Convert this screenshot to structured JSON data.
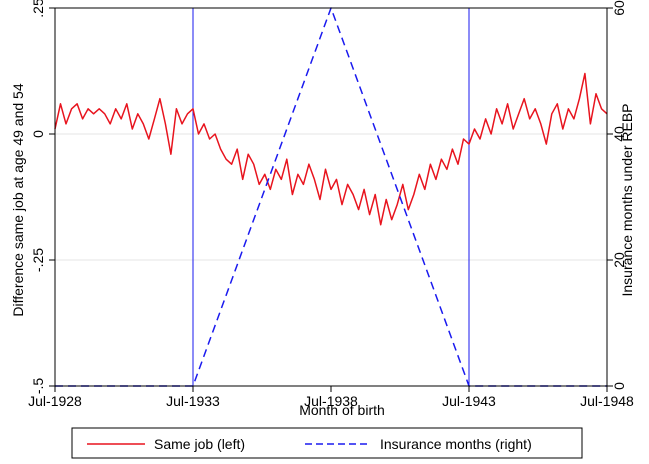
{
  "chart_data": {
    "type": "line",
    "xlabel": "Month of birth",
    "ylabel_left": "Difference same job at age 49 and 54",
    "ylabel_right": "Insurance months under REBP",
    "x_ticks": [
      {
        "label": "Jul-1928",
        "value": 1928.5
      },
      {
        "label": "Jul-1933",
        "value": 1933.5
      },
      {
        "label": "Jul-1938",
        "value": 1938.5
      },
      {
        "label": "Jul-1943",
        "value": 1943.5
      },
      {
        "label": "Jul-1948",
        "value": 1948.5
      }
    ],
    "xlim": [
      1928.5,
      1948.5
    ],
    "y_left_ticks": [
      {
        "label": "-.5",
        "value": -0.5
      },
      {
        "label": "-.25",
        "value": -0.25
      },
      {
        "label": "0",
        "value": 0
      },
      {
        "label": ".25",
        "value": 0.25
      }
    ],
    "y_left_lim": [
      -0.5,
      0.25
    ],
    "y_right_ticks": [
      {
        "label": "0",
        "value": 0
      },
      {
        "label": "20",
        "value": 20
      },
      {
        "label": "40",
        "value": 40
      },
      {
        "label": "60",
        "value": 60
      }
    ],
    "y_right_lim": [
      0,
      60
    ],
    "grid": true,
    "vlines": [
      1933.5,
      1943.5
    ],
    "series": [
      {
        "name": "Same job (left)",
        "axis": "left",
        "color": "#e8141e",
        "style": "solid",
        "x": [
          1928.5,
          1928.7,
          1928.9,
          1929.1,
          1929.3,
          1929.5,
          1929.7,
          1929.9,
          1930.1,
          1930.3,
          1930.5,
          1930.7,
          1930.9,
          1931.1,
          1931.3,
          1931.5,
          1931.7,
          1931.9,
          1932.1,
          1932.3,
          1932.5,
          1932.7,
          1932.9,
          1933.1,
          1933.3,
          1933.5,
          1933.7,
          1933.9,
          1934.1,
          1934.3,
          1934.5,
          1934.7,
          1934.9,
          1935.1,
          1935.3,
          1935.5,
          1935.7,
          1935.9,
          1936.1,
          1936.3,
          1936.5,
          1936.7,
          1936.9,
          1937.1,
          1937.3,
          1937.5,
          1937.7,
          1937.9,
          1938.1,
          1938.3,
          1938.5,
          1938.7,
          1938.9,
          1939.1,
          1939.3,
          1939.5,
          1939.7,
          1939.9,
          1940.1,
          1940.3,
          1940.5,
          1940.7,
          1940.9,
          1941.1,
          1941.3,
          1941.5,
          1941.7,
          1941.9,
          1942.1,
          1942.3,
          1942.5,
          1942.7,
          1942.9,
          1943.1,
          1943.3,
          1943.5,
          1943.7,
          1943.9,
          1944.1,
          1944.3,
          1944.5,
          1944.7,
          1944.9,
          1945.1,
          1945.3,
          1945.5,
          1945.7,
          1945.9,
          1946.1,
          1946.3,
          1946.5,
          1946.7,
          1946.9,
          1947.1,
          1947.3,
          1947.5,
          1947.7,
          1947.9,
          1948.1,
          1948.3,
          1948.5
        ],
        "values": [
          0.01,
          0.06,
          0.02,
          0.05,
          0.06,
          0.03,
          0.05,
          0.04,
          0.05,
          0.04,
          0.02,
          0.05,
          0.03,
          0.06,
          0.01,
          0.04,
          0.02,
          -0.01,
          0.03,
          0.07,
          0.02,
          -0.04,
          0.05,
          0.02,
          0.04,
          0.05,
          0.0,
          0.02,
          -0.01,
          0.0,
          -0.03,
          -0.05,
          -0.06,
          -0.03,
          -0.09,
          -0.04,
          -0.06,
          -0.1,
          -0.08,
          -0.11,
          -0.07,
          -0.09,
          -0.05,
          -0.12,
          -0.08,
          -0.1,
          -0.06,
          -0.09,
          -0.13,
          -0.07,
          -0.11,
          -0.09,
          -0.14,
          -0.1,
          -0.12,
          -0.15,
          -0.11,
          -0.16,
          -0.12,
          -0.18,
          -0.13,
          -0.17,
          -0.14,
          -0.1,
          -0.15,
          -0.12,
          -0.08,
          -0.11,
          -0.06,
          -0.09,
          -0.05,
          -0.07,
          -0.03,
          -0.06,
          -0.01,
          -0.02,
          0.01,
          -0.01,
          0.03,
          0.0,
          0.05,
          0.02,
          0.06,
          0.01,
          0.04,
          0.07,
          0.03,
          0.05,
          0.02,
          -0.02,
          0.04,
          0.06,
          0.01,
          0.05,
          0.03,
          0.07,
          0.12,
          0.02,
          0.08,
          0.05,
          0.04
        ]
      },
      {
        "name": "Insurance months (right)",
        "axis": "right",
        "color": "#1a1aef",
        "style": "dashed",
        "x": [
          1928.5,
          1933.5,
          1938.5,
          1943.5,
          1948.5
        ],
        "values": [
          0,
          0,
          60,
          0,
          0
        ]
      }
    ],
    "legend": "bottom"
  }
}
